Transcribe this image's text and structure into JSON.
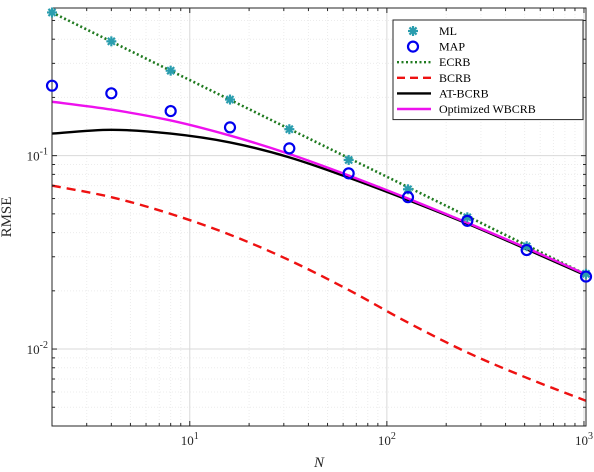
{
  "chart_data": {
    "type": "line",
    "title": "",
    "xlabel": "N",
    "ylabel": "RMSE",
    "xscale": "log",
    "yscale": "log",
    "xlim": [
      2,
      1024
    ],
    "ylim": [
      0.004,
      0.58
    ],
    "grid": true,
    "legend_position": "top-right",
    "x_ticks": [
      {
        "value": 10,
        "base": "10",
        "exp": "1"
      },
      {
        "value": 100,
        "base": "10",
        "exp": "2"
      },
      {
        "value": 1000,
        "base": "10",
        "exp": "3"
      }
    ],
    "y_ticks": [
      {
        "value": 0.01,
        "base": "10",
        "exp": "-2"
      },
      {
        "value": 0.1,
        "base": "10",
        "exp": "-1"
      }
    ],
    "series": [
      {
        "name": "ML",
        "style": "markers",
        "marker": "asterisk",
        "color": "#2a9dae",
        "x": [
          2,
          4,
          8,
          16,
          32,
          64,
          128,
          256,
          512,
          1024
        ],
        "y": [
          0.55,
          0.39,
          0.275,
          0.195,
          0.137,
          0.095,
          0.067,
          0.048,
          0.034,
          0.0245
        ]
      },
      {
        "name": "MAP",
        "style": "markers",
        "marker": "circle",
        "color": "#0000ee",
        "x": [
          2,
          4,
          8,
          16,
          32,
          64,
          128,
          256,
          512,
          1024
        ],
        "y": [
          0.23,
          0.21,
          0.17,
          0.14,
          0.109,
          0.081,
          0.061,
          0.046,
          0.0325,
          0.0237
        ]
      },
      {
        "name": "ECRB",
        "style": "dotted",
        "color": "#1f7a1f",
        "x": [
          2,
          1024
        ],
        "y": [
          0.55,
          0.0243
        ]
      },
      {
        "name": "BCRB",
        "style": "dashed",
        "color": "#ee1111",
        "x": [
          2,
          4,
          8,
          16,
          32,
          64,
          128,
          256,
          512,
          1024
        ],
        "y": [
          0.07,
          0.061,
          0.05,
          0.039,
          0.0288,
          0.0202,
          0.0137,
          0.0096,
          0.0071,
          0.0054
        ]
      },
      {
        "name": "AT-BCRB",
        "style": "solid",
        "color": "#000000",
        "x": [
          2,
          4,
          8,
          16,
          32,
          64,
          128,
          256,
          512,
          1024
        ],
        "y": [
          0.13,
          0.136,
          0.13,
          0.117,
          0.098,
          0.077,
          0.059,
          0.0445,
          0.0328,
          0.024
        ]
      },
      {
        "name": "Optimized WBCRB",
        "style": "solid",
        "color": "#ee11ee",
        "x": [
          2,
          4,
          8,
          16,
          32,
          64,
          128,
          256,
          512,
          1024
        ],
        "y": [
          0.19,
          0.173,
          0.152,
          0.127,
          0.102,
          0.079,
          0.06,
          0.045,
          0.0333,
          0.0243
        ]
      }
    ]
  }
}
